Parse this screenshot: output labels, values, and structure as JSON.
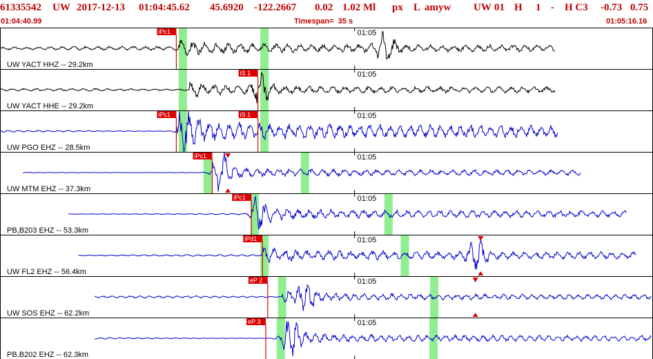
{
  "header": {
    "event_id": "61335542",
    "network": "UW",
    "date": "2017-12-13",
    "time": "01:04:45.62",
    "lat": "45.6920",
    "lon": "-122.2667",
    "depth": "0.02",
    "magnitude": "1.02 Ml",
    "flags": "px",
    "mode": "L",
    "analyst": "amyw",
    "net2": "UW",
    "version": "01",
    "flag_h": "H",
    "count": "1",
    "dash": "-",
    "quality": "H C3",
    "val1": "-0.73",
    "val2": "0.75",
    "start_time": "01:04:40.99",
    "timespan": "Timespan=  35 s",
    "end_time": "01:05:16.16"
  },
  "colors": {
    "header_red": "#c00000",
    "trace_black": "#000000",
    "trace_blue": "#0000cc",
    "pick_box": "#dd0000",
    "pick_text": "#ffffff",
    "window_green": "#90ee90",
    "grid": "#000000"
  },
  "time_tick_label": "01:05",
  "traces": [
    {
      "label": "UW YACT HHZ -- 29.2km",
      "color": "black",
      "start": 0.0,
      "end": 0.85,
      "onset": 0.27,
      "amp_pre": 0.12,
      "amp_post": 0.35,
      "freq": 55,
      "peak_at": 0.59,
      "peak_amp": 0.75,
      "picks": [
        {
          "text": "iPc1",
          "pos": 0.27
        }
      ],
      "greens": [
        0.28,
        0.405
      ],
      "markers": []
    },
    {
      "label": "UW YACT HHE -- 29.2km",
      "color": "black",
      "start": 0.0,
      "end": 0.85,
      "onset": 0.29,
      "amp_pre": 0.08,
      "amp_post": 0.3,
      "freq": 55,
      "peak_at": 0.4,
      "peak_amp": 0.7,
      "picks": [
        {
          "text": "iS 1",
          "pos": 0.395
        }
      ],
      "greens": [
        0.28,
        0.405
      ],
      "markers": []
    },
    {
      "label": "UW PGO EHZ -- 28.5km",
      "color": "blue",
      "start": 0.0,
      "end": 0.855,
      "onset": 0.27,
      "amp_pre": 0.06,
      "amp_post": 0.6,
      "freq": 65,
      "peak_at": 0.29,
      "peak_amp": 0.85,
      "picks": [
        {
          "text": "iPc1",
          "pos": 0.27
        },
        {
          "text": "iS 1",
          "pos": 0.395
        }
      ],
      "greens": [
        0.28,
        0.405
      ],
      "markers": []
    },
    {
      "label": "UW MTM EHZ -- 37.3km",
      "color": "blue",
      "start": 0.035,
      "end": 0.89,
      "onset": 0.325,
      "amp_pre": 0.03,
      "amp_post": 0.28,
      "freq": 60,
      "peak_at": 0.34,
      "peak_amp": 0.85,
      "picks": [
        {
          "text": "iPc1",
          "pos": 0.325
        }
      ],
      "greens": [
        0.318,
        0.467
      ],
      "markers": [
        {
          "pos": 0.349,
          "dir": "down",
          "side": "top"
        },
        {
          "pos": 0.349,
          "dir": "up",
          "side": "bottom"
        }
      ]
    },
    {
      "label": "PB,B203 EHZ -- 53.3km",
      "color": "blue",
      "start": 0.105,
      "end": 0.96,
      "onset": 0.385,
      "amp_pre": 0.04,
      "amp_post": 0.33,
      "freq": 60,
      "peak_at": 0.4,
      "peak_amp": 0.7,
      "picks": [
        {
          "text": "iPc1",
          "pos": 0.385
        }
      ],
      "greens": [
        0.39,
        0.595
      ],
      "markers": []
    },
    {
      "label": "UW FL2 EHZ -- 56.4km",
      "color": "blue",
      "start": 0.12,
      "end": 0.975,
      "onset": 0.402,
      "amp_pre": 0.05,
      "amp_post": 0.35,
      "freq": 60,
      "peak_at": 0.73,
      "peak_amp": 0.75,
      "picks": [
        {
          "text": "iPd1",
          "pos": 0.402
        }
      ],
      "greens": [
        0.405,
        0.62
      ],
      "markers": [
        {
          "pos": 0.736,
          "dir": "down",
          "side": "top"
        },
        {
          "pos": 0.736,
          "dir": "up",
          "side": "bottom"
        }
      ]
    },
    {
      "label": "UW SOS EHZ -- 62.2km",
      "color": "blue",
      "start": 0.145,
      "end": 0.998,
      "onset": 0.432,
      "amp_pre": 0.07,
      "amp_post": 0.25,
      "freq": 70,
      "peak_at": 0.47,
      "peak_amp": 0.65,
      "picks": [
        {
          "text": "eP 2",
          "pos": 0.41
        }
      ],
      "greens": [
        0.432,
        0.665
      ],
      "markers": [
        {
          "pos": 0.728,
          "dir": "down",
          "side": "top"
        },
        {
          "pos": 0.728,
          "dir": "up",
          "side": "bottom"
        }
      ]
    },
    {
      "label": "PB,B202 EHZ -- 62.3km",
      "color": "blue",
      "start": 0.145,
      "end": 0.998,
      "onset": 0.432,
      "amp_pre": 0.05,
      "amp_post": 0.28,
      "freq": 70,
      "peak_at": 0.445,
      "peak_amp": 0.8,
      "picks": [
        {
          "text": "eP 3",
          "pos": 0.407
        }
      ],
      "greens": [
        0.43,
        0.664
      ],
      "markers": []
    }
  ]
}
